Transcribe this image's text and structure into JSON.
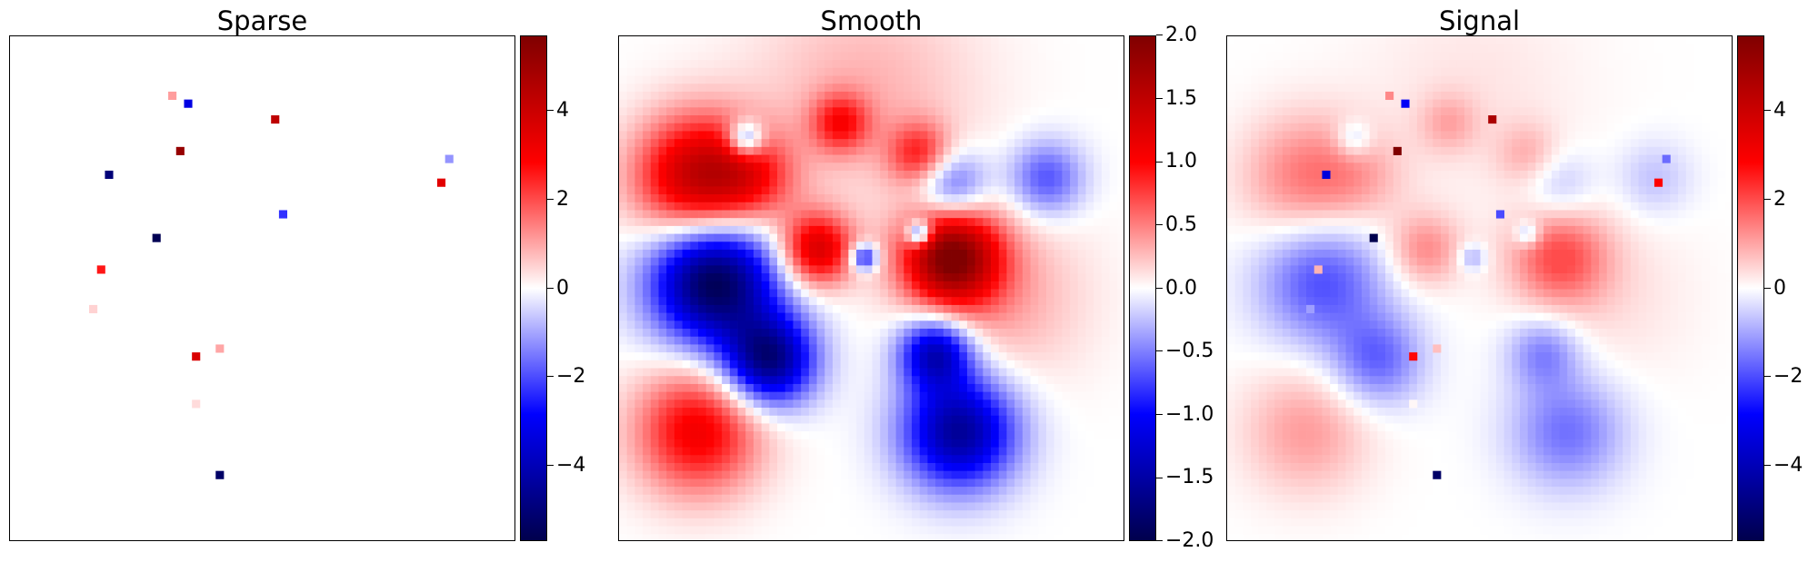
{
  "colormap": "seismic",
  "chart_data": [
    {
      "type": "heatmap",
      "title": "Sparse",
      "grid": false,
      "axes_ticks": false,
      "xlim": [
        0,
        64
      ],
      "ylim": [
        0,
        64
      ],
      "colorbar": {
        "vmin": -5.7,
        "vmax": 5.7,
        "ticks": [
          -4,
          -2,
          0,
          2,
          4
        ],
        "tick_labels": [
          "−4",
          "−2",
          "0",
          "2",
          "4"
        ]
      },
      "spikes": [
        {
          "x": 20.5,
          "y": 7.5,
          "v": 1.1
        },
        {
          "x": 22.5,
          "y": 8.5,
          "v": -3.3
        },
        {
          "x": 33.5,
          "y": 10.5,
          "v": 4.3
        },
        {
          "x": 21.5,
          "y": 14.5,
          "v": 5.2
        },
        {
          "x": 12.5,
          "y": 17.5,
          "v": -5.0
        },
        {
          "x": 55.5,
          "y": 15.5,
          "v": -1.2
        },
        {
          "x": 54.5,
          "y": 18.5,
          "v": 3.5
        },
        {
          "x": 34.5,
          "y": 22.5,
          "v": -2.3
        },
        {
          "x": 18.5,
          "y": 25.5,
          "v": -5.6
        },
        {
          "x": 11.5,
          "y": 29.5,
          "v": 2.6
        },
        {
          "x": 10.5,
          "y": 34.5,
          "v": 0.5
        },
        {
          "x": 26.5,
          "y": 39.5,
          "v": 1.0
        },
        {
          "x": 23.5,
          "y": 40.5,
          "v": 3.7
        },
        {
          "x": 23.5,
          "y": 46.5,
          "v": 0.4
        },
        {
          "x": 26.5,
          "y": 55.5,
          "v": -5.3
        }
      ]
    },
    {
      "type": "heatmap",
      "title": "Smooth",
      "grid": false,
      "axes_ticks": false,
      "xlim": [
        0,
        64
      ],
      "ylim": [
        0,
        64
      ],
      "colorbar": {
        "vmin": -2.0,
        "vmax": 2.0,
        "ticks": [
          -2.0,
          -1.5,
          -1.0,
          -0.5,
          0.0,
          0.5,
          1.0,
          1.5,
          2.0
        ],
        "tick_labels": [
          "−2.0",
          "−1.5",
          "−1.0",
          "−0.5",
          "0.0",
          "0.5",
          "1.0",
          "1.5",
          "2.0"
        ]
      },
      "blobs": [
        {
          "x": 10,
          "y": 18,
          "amp": 1.5,
          "sigma": 5.5
        },
        {
          "x": 17,
          "y": 18,
          "amp": 0.6,
          "sigma": 4.0
        },
        {
          "x": 16,
          "y": 13,
          "amp": -1.0,
          "sigma": 1.6
        },
        {
          "x": 28,
          "y": 11,
          "amp": 0.8,
          "sigma": 2.6
        },
        {
          "x": 38,
          "y": 15,
          "amp": 0.8,
          "sigma": 2.8
        },
        {
          "x": 42,
          "y": 19,
          "amp": -0.8,
          "sigma": 3.2
        },
        {
          "x": 54,
          "y": 18,
          "amp": -0.7,
          "sigma": 3.3
        },
        {
          "x": 25,
          "y": 27,
          "amp": 1.3,
          "sigma": 3.2
        },
        {
          "x": 42,
          "y": 28,
          "amp": 1.9,
          "sigma": 4.3
        },
        {
          "x": 31,
          "y": 28,
          "amp": -1.1,
          "sigma": 1.2
        },
        {
          "x": 38,
          "y": 25,
          "amp": -1.3,
          "sigma": 1.1
        },
        {
          "x": 12,
          "y": 31,
          "amp": -2.0,
          "sigma": 5.5
        },
        {
          "x": 19,
          "y": 41,
          "amp": -1.7,
          "sigma": 4.0
        },
        {
          "x": 40,
          "y": 40,
          "amp": -1.4,
          "sigma": 3.2
        },
        {
          "x": 43,
          "y": 50,
          "amp": -1.6,
          "sigma": 5.0
        },
        {
          "x": 10,
          "y": 50,
          "amp": 1.1,
          "sigma": 5.5
        },
        {
          "x": 48,
          "y": 33,
          "amp": 0.35,
          "sigma": 7.5
        },
        {
          "x": 31,
          "y": 7,
          "amp": 0.3,
          "sigma": 10.0
        }
      ]
    },
    {
      "type": "heatmap",
      "title": "Signal",
      "grid": false,
      "axes_ticks": false,
      "xlim": [
        0,
        64
      ],
      "ylim": [
        0,
        64
      ],
      "composition": "Sparse + Smooth",
      "colorbar": {
        "vmin": -5.7,
        "vmax": 5.7,
        "ticks": [
          -4,
          -2,
          0,
          2,
          4
        ],
        "tick_labels": [
          "−4",
          "−2",
          "0",
          "2",
          "4"
        ]
      }
    }
  ]
}
